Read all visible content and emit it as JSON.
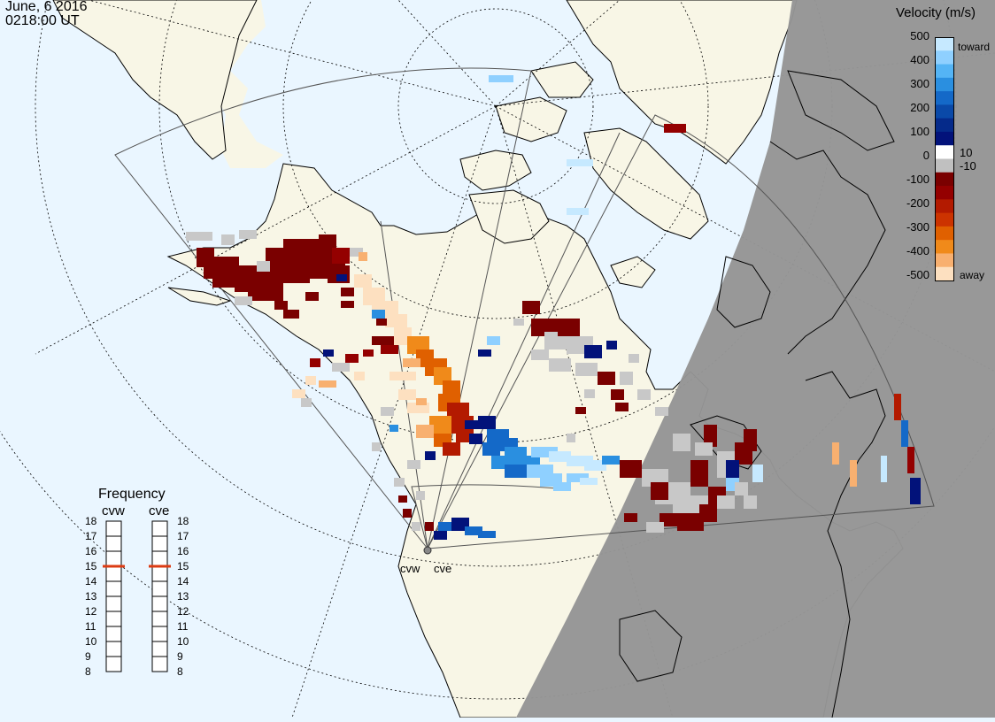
{
  "header": {
    "date": "June, 6 2016",
    "time": "0218:00 UT"
  },
  "velocity_scale": {
    "title": "Velocity (m/s)",
    "tick_labels": [
      "500",
      "400",
      "300",
      "200",
      "100",
      "10",
      "0",
      "-10",
      "-100",
      "-200",
      "-300",
      "-400",
      "-500"
    ],
    "toward_label": "toward",
    "away_label": "away",
    "colors": [
      "#c6e9ff",
      "#8fd0ff",
      "#54b4f5",
      "#2a8fe0",
      "#1469c8",
      "#0a49a8",
      "#052a8a",
      "#02127a",
      "#ffffff",
      "#c0c0c0",
      "#7a0000",
      "#940000",
      "#b31a00",
      "#cc3300",
      "#e06000",
      "#f08a1a",
      "#f8b070",
      "#fde0c0"
    ]
  },
  "radars": [
    {
      "code": "cvw",
      "label": "cvw"
    },
    {
      "code": "cve",
      "label": "cve"
    }
  ],
  "frequency_panel": {
    "title": "Frequency",
    "columns": [
      {
        "label": "cvw",
        "current": 15
      },
      {
        "label": "cve",
        "current": 15
      }
    ],
    "scale": [
      18,
      17,
      16,
      15,
      14,
      13,
      12,
      11,
      10,
      9,
      8
    ]
  },
  "map_colors": {
    "ocean": "#eaf6ff",
    "land": "#f8f6e6",
    "night": "#959595",
    "ground_scatter": "#c8c8c8"
  }
}
